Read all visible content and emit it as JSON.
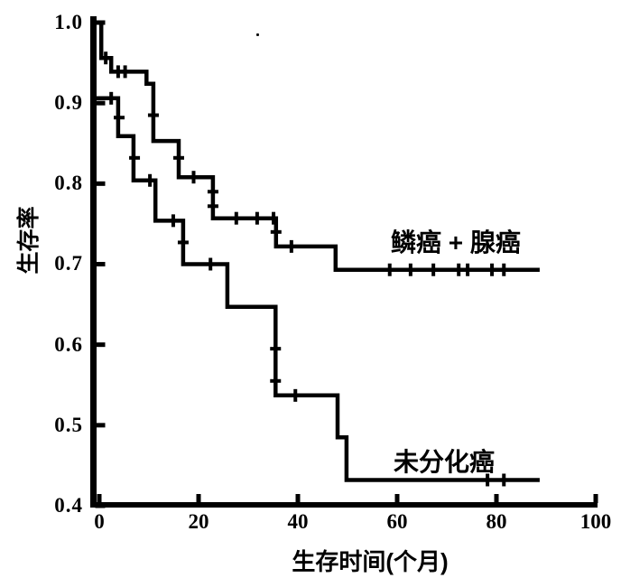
{
  "chart_data": {
    "type": "line",
    "subtype": "kaplan-meier-step",
    "title": "",
    "xlabel": "生存时间(个月)",
    "ylabel": "生存率",
    "xlim": [
      0,
      100
    ],
    "ylim": [
      0.4,
      1.0
    ],
    "xticks": [
      "0",
      "20",
      "40",
      "60",
      "80",
      "100"
    ],
    "yticks": [
      "1.0",
      "0.9",
      "0.8",
      "0.7",
      "0.6",
      "0.5",
      "0.4"
    ],
    "grid": false,
    "legend_position": "inline-annotations",
    "line_color": "#000000",
    "background_color": "#ffffff",
    "series": [
      {
        "name": "鳞癌 + 腺癌",
        "steps": [
          [
            0,
            1.0
          ],
          [
            0.4,
            0.956
          ],
          [
            2.4,
            0.939
          ],
          [
            9.5,
            0.924
          ],
          [
            10.9,
            0.853
          ],
          [
            16.0,
            0.808
          ],
          [
            22.9,
            0.757
          ],
          [
            35.6,
            0.722
          ],
          [
            47.6,
            0.693
          ]
        ],
        "end_month": 88.7,
        "censor_marks": [
          [
            1.3,
            0.956,
            "v"
          ],
          [
            3.8,
            0.939,
            "v"
          ],
          [
            5.2,
            0.939,
            "v"
          ],
          [
            10.9,
            0.885,
            "h"
          ],
          [
            16.0,
            0.832,
            "h"
          ],
          [
            19.0,
            0.808,
            "v"
          ],
          [
            22.9,
            0.79,
            "h"
          ],
          [
            22.9,
            0.772,
            "h"
          ],
          [
            27.6,
            0.757,
            "v"
          ],
          [
            31.8,
            0.757,
            "v"
          ],
          [
            35.1,
            0.757,
            "v"
          ],
          [
            35.6,
            0.74,
            "h"
          ],
          [
            38.7,
            0.722,
            "v"
          ],
          [
            58.5,
            0.693,
            "v"
          ],
          [
            62.7,
            0.693,
            "v"
          ],
          [
            67.3,
            0.693,
            "v"
          ],
          [
            72.4,
            0.693,
            "v"
          ],
          [
            74.2,
            0.693,
            "v"
          ],
          [
            79.1,
            0.693,
            "v"
          ],
          [
            81.5,
            0.693,
            "v"
          ]
        ]
      },
      {
        "name": "未分化癌",
        "steps": [
          [
            0,
            0.906
          ],
          [
            3.8,
            0.859
          ],
          [
            6.9,
            0.804
          ],
          [
            11.3,
            0.754
          ],
          [
            16.9,
            0.7
          ],
          [
            25.8,
            0.647
          ],
          [
            35.5,
            0.537
          ],
          [
            48.0,
            0.485
          ],
          [
            49.8,
            0.432
          ]
        ],
        "end_month": 88.7,
        "censor_marks": [
          [
            2.4,
            0.906,
            "v"
          ],
          [
            4.0,
            0.882,
            "h"
          ],
          [
            7.1,
            0.832,
            "h"
          ],
          [
            10.2,
            0.804,
            "v"
          ],
          [
            14.9,
            0.754,
            "v"
          ],
          [
            16.9,
            0.727,
            "h"
          ],
          [
            22.4,
            0.7,
            "v"
          ],
          [
            35.5,
            0.595,
            "h"
          ],
          [
            35.5,
            0.555,
            "h"
          ],
          [
            39.5,
            0.537,
            "v"
          ],
          [
            78.2,
            0.432,
            "v"
          ],
          [
            81.5,
            0.432,
            "v"
          ]
        ]
      }
    ]
  }
}
